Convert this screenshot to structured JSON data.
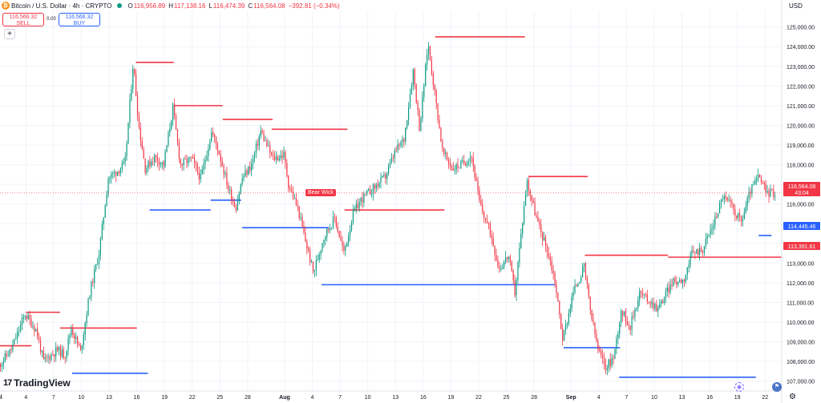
{
  "header": {
    "symbol_title": "Bitcoin / U.S. Dollar · 4h · CRYPTO",
    "open_label": "O",
    "open": "116,956.89",
    "high_label": "H",
    "high": "117,138.16",
    "low_label": "L",
    "low": "116,474.39",
    "close_label": "C",
    "close": "116,564.08",
    "change": "−392.81 (−0.34%)",
    "currency": "USD"
  },
  "trade": {
    "sell_price": "116,566.32",
    "sell_label": "SELL",
    "spread": "0.00",
    "buy_price": "116,566.32",
    "buy_label": "BUY",
    "add_label": "+"
  },
  "brand": {
    "name": "TradingView",
    "mark": "17"
  },
  "annotations": {
    "bear_wick": "Bear Wick"
  },
  "price_badges": {
    "current": "116,564.08",
    "countdown": "43:04",
    "blue": "114,445.46",
    "red": "113,391.61"
  },
  "colors": {
    "up": "#089981",
    "down": "#f23645",
    "resistance": "#f23645",
    "support": "#2962ff",
    "last_price": "#f23645",
    "grid": "#f0f3fa",
    "axis_text": "#131722"
  },
  "icons": {
    "gear": "gear-icon",
    "eye": "eye-icon",
    "flag": "flag-icon"
  },
  "chart_data": {
    "type": "candlestick",
    "symbol": "BTCUSD",
    "timeframe": "4h",
    "ylim": [
      106500,
      125800
    ],
    "y_ticks": [
      "107,000.00",
      "108,000.00",
      "109,000.00",
      "110,000.00",
      "111,000.00",
      "112,000.00",
      "113,000.00",
      "114,000.00",
      "115,000.00",
      "116,000.00",
      "117,000.00",
      "118,000.00",
      "119,000.00",
      "120,000.00",
      "121,000.00",
      "122,000.00",
      "123,000.00",
      "124,000.00",
      "125,000.00"
    ],
    "x_ticks": [
      "Jul",
      "4",
      "7",
      "10",
      "13",
      "16",
      "19",
      "22",
      "25",
      "28",
      "Aug",
      "4",
      "7",
      "10",
      "13",
      "16",
      "19",
      "22",
      "25",
      "28",
      "Sep",
      "4",
      "7",
      "10",
      "13",
      "16",
      "19",
      "22"
    ],
    "x_tick_days": [
      0,
      3,
      6,
      9,
      12,
      15,
      18,
      21,
      24,
      27,
      31,
      34,
      37,
      40,
      43,
      46,
      49,
      52,
      55,
      58,
      62,
      65,
      68,
      71,
      74,
      77,
      80,
      83
    ],
    "x_range_days": [
      0.2,
      84.8
    ],
    "grid": true,
    "price_path": [
      [
        0,
        107700
      ],
      [
        1.5,
        108600
      ],
      [
        3,
        110400
      ],
      [
        4.2,
        109600
      ],
      [
        5,
        108000
      ],
      [
        6.5,
        108600
      ],
      [
        7.3,
        108300
      ],
      [
        8,
        109700
      ],
      [
        9,
        108500
      ],
      [
        10,
        111500
      ],
      [
        11,
        113500
      ],
      [
        12,
        117300
      ],
      [
        13,
        117700
      ],
      [
        13.8,
        118000
      ],
      [
        14.7,
        123200
      ],
      [
        15.3,
        120000
      ],
      [
        16,
        117800
      ],
      [
        17,
        118400
      ],
      [
        18,
        118000
      ],
      [
        19,
        120900
      ],
      [
        19.8,
        118000
      ],
      [
        21,
        118300
      ],
      [
        22,
        117300
      ],
      [
        23.2,
        119700
      ],
      [
        24,
        118600
      ],
      [
        25,
        116800
      ],
      [
        25.8,
        115800
      ],
      [
        26.5,
        117300
      ],
      [
        27.5,
        118000
      ],
      [
        28.5,
        119700
      ],
      [
        29.8,
        118300
      ],
      [
        31,
        118500
      ],
      [
        31.5,
        117000
      ],
      [
        32.5,
        115800
      ],
      [
        33.3,
        114200
      ],
      [
        34.2,
        112500
      ],
      [
        35.3,
        114300
      ],
      [
        36.5,
        115300
      ],
      [
        37.5,
        113500
      ],
      [
        38.5,
        115500
      ],
      [
        39.3,
        116200
      ],
      [
        40.5,
        116700
      ],
      [
        42,
        117400
      ],
      [
        43,
        118600
      ],
      [
        44,
        119300
      ],
      [
        45,
        122800
      ],
      [
        45.7,
        119800
      ],
      [
        46.6,
        124200
      ],
      [
        47.4,
        121400
      ],
      [
        48.2,
        118600
      ],
      [
        49.3,
        117800
      ],
      [
        50.5,
        118100
      ],
      [
        51.3,
        118500
      ],
      [
        52.2,
        116000
      ],
      [
        53.4,
        114500
      ],
      [
        54.3,
        112700
      ],
      [
        55.3,
        113400
      ],
      [
        56,
        111500
      ],
      [
        57.3,
        117200
      ],
      [
        58.5,
        115000
      ],
      [
        59.5,
        113700
      ],
      [
        60.3,
        112200
      ],
      [
        61.2,
        109100
      ],
      [
        62.3,
        111500
      ],
      [
        63.5,
        112800
      ],
      [
        64.2,
        110500
      ],
      [
        65,
        108600
      ],
      [
        65.8,
        107700
      ],
      [
        66.7,
        108200
      ],
      [
        67.5,
        110600
      ],
      [
        68.5,
        109800
      ],
      [
        69.5,
        111500
      ],
      [
        71.5,
        110700
      ],
      [
        73,
        112000
      ],
      [
        74.3,
        112200
      ],
      [
        75.2,
        113500
      ],
      [
        76.3,
        113700
      ],
      [
        77.5,
        115000
      ],
      [
        78.5,
        116400
      ],
      [
        79.3,
        116000
      ],
      [
        80.5,
        115100
      ],
      [
        81.5,
        116700
      ],
      [
        82.4,
        117400
      ],
      [
        83.2,
        116600
      ],
      [
        84.1,
        116564
      ]
    ],
    "levels": [
      {
        "kind": "resistance",
        "start_day": 0.0,
        "end_day": 3.6,
        "price": 108800
      },
      {
        "kind": "resistance",
        "start_day": 3.0,
        "end_day": 6.7,
        "price": 110500
      },
      {
        "kind": "resistance",
        "start_day": 6.7,
        "end_day": 15.0,
        "price": 109700
      },
      {
        "kind": "support",
        "start_day": 8.0,
        "end_day": 16.2,
        "price": 107400
      },
      {
        "kind": "resistance",
        "start_day": 14.9,
        "end_day": 19.0,
        "price": 123200
      },
      {
        "kind": "support",
        "start_day": 16.4,
        "end_day": 23.0,
        "price": 115700
      },
      {
        "kind": "resistance",
        "start_day": 19.1,
        "end_day": 24.3,
        "price": 121000
      },
      {
        "kind": "support",
        "start_day": 23.0,
        "end_day": 26.3,
        "price": 116200
      },
      {
        "kind": "resistance",
        "start_day": 24.3,
        "end_day": 29.7,
        "price": 120300
      },
      {
        "kind": "resistance",
        "start_day": 29.6,
        "end_day": 37.8,
        "price": 119800
      },
      {
        "kind": "support",
        "start_day": 26.4,
        "end_day": 35.8,
        "price": 114800
      },
      {
        "kind": "support",
        "start_day": 35.0,
        "end_day": 60.3,
        "price": 111900
      },
      {
        "kind": "resistance",
        "start_day": 37.5,
        "end_day": 48.3,
        "price": 115700
      },
      {
        "kind": "resistance",
        "start_day": 47.3,
        "end_day": 57.0,
        "price": 124500
      },
      {
        "kind": "resistance",
        "start_day": 57.4,
        "end_day": 63.8,
        "price": 117400
      },
      {
        "kind": "resistance",
        "start_day": 63.5,
        "end_day": 72.5,
        "price": 113400
      },
      {
        "kind": "support",
        "start_day": 61.2,
        "end_day": 67.3,
        "price": 108700
      },
      {
        "kind": "support",
        "start_day": 67.2,
        "end_day": 82.0,
        "price": 107200
      },
      {
        "kind": "resistance",
        "start_day": 72.5,
        "end_day": 84.8,
        "price": 113300
      },
      {
        "kind": "support",
        "start_day": 82.3,
        "end_day": 83.7,
        "price": 114400
      }
    ],
    "last_price": 116564.08,
    "blue_badge_price": 114445.46,
    "red_badge_price": 113391.61
  }
}
